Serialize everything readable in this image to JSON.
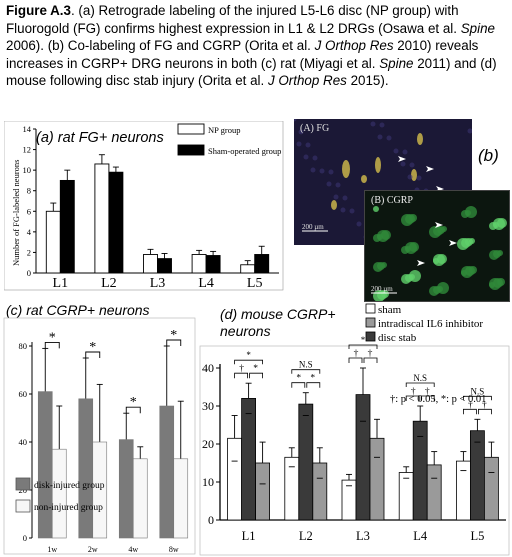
{
  "caption": {
    "figure_label": "Figure A.3",
    "text_parts": [
      {
        "t": ". (a) Retrograde labeling of the injured L5-L6 disc (NP group) with Fluorogold (FG) confirms highest expression in L1 & L2 DRGs (Osawa et al. ",
        "i": false
      },
      {
        "t": "Spine",
        "i": true
      },
      {
        "t": " 2006). (b) Co-labeling of FG and CGRP (Orita et al. ",
        "i": false
      },
      {
        "t": "J Orthop Res",
        "i": true
      },
      {
        "t": " 2010) reveals increases in CGRP+ DRG neurons in both (c) rat (Miyagi et al. ",
        "i": false
      },
      {
        "t": "Spine",
        "i": true
      },
      {
        "t": " 2011) and (d) mouse following disc stab injury (Orita et al. ",
        "i": false
      },
      {
        "t": "J Orthop Res",
        "i": true
      },
      {
        "t": " 2015).",
        "i": false
      }
    ]
  },
  "panel_b": {
    "label": "(b)",
    "image1_label": "(A) FG",
    "image2_label": "(B) CGRP",
    "scale_text": "200 µm"
  },
  "chart_data": [
    {
      "type": "bar",
      "title": "(a) rat FG+ neurons",
      "ylabel": "Number of FG-labeled neurons",
      "ylim": [
        0,
        14
      ],
      "yticks": [
        0,
        2,
        4,
        6,
        8,
        10,
        12,
        14
      ],
      "categories": [
        "L1",
        "L2",
        "L3",
        "L4",
        "L5"
      ],
      "series": [
        {
          "name": "NP group",
          "color": "#ffffff",
          "values": [
            6.0,
            10.6,
            1.8,
            1.8,
            0.8
          ],
          "errors": [
            0.8,
            0.9,
            0.5,
            0.4,
            0.4
          ]
        },
        {
          "name": "Sham-operated group",
          "color": "#000000",
          "values": [
            9.0,
            9.8,
            1.4,
            1.7,
            1.8
          ],
          "errors": [
            1.0,
            0.5,
            0.5,
            0.4,
            0.8
          ]
        }
      ]
    },
    {
      "type": "bar",
      "title": "(c) rat CGRP+ neurons",
      "ylim": [
        0,
        80
      ],
      "yticks": [
        0,
        20,
        40,
        60,
        80
      ],
      "categories": [
        "1w",
        "2w",
        "4w",
        "8w"
      ],
      "series": [
        {
          "name": "disk-injured group",
          "color": "#7a7a7a",
          "values": [
            61,
            58,
            41,
            55
          ],
          "errors": [
            18,
            17,
            11,
            25
          ]
        },
        {
          "name": "non-injured group",
          "color": "#f7f7f7",
          "values": [
            37,
            40,
            33,
            33
          ],
          "errors": [
            18,
            24,
            5,
            24
          ]
        }
      ],
      "significance": [
        "*",
        "*",
        "*",
        "*"
      ]
    },
    {
      "type": "bar",
      "title": "(d) mouse CGRP+ neurons",
      "ylim": [
        0,
        40
      ],
      "yticks": [
        0,
        10,
        20,
        30,
        40
      ],
      "categories": [
        "L1",
        "L2",
        "L3",
        "L4",
        "L5"
      ],
      "series": [
        {
          "name": "sham",
          "color": "#ffffff",
          "values": [
            21.5,
            16.5,
            10.5,
            12.5,
            15.5
          ],
          "errors": [
            6,
            2.5,
            1.5,
            1.5,
            2.5
          ]
        },
        {
          "name": "intradiscal IL6 inhibitor",
          "color": "#9a9a9a",
          "values": [
            15,
            15,
            21.5,
            14.5,
            16.5
          ],
          "errors": [
            5.5,
            4,
            5,
            3.5,
            4
          ]
        },
        {
          "name": "disc stab",
          "color": "#3a3a3a",
          "values": [
            32,
            30.5,
            33,
            26,
            23.5
          ],
          "errors": [
            4,
            3,
            7,
            4,
            3
          ]
        }
      ],
      "group_labels": [
        "*",
        "N.S",
        "*",
        "N.S",
        "N.S"
      ],
      "pair_labels": [
        [
          "†",
          "*",
          "*"
        ],
        [
          "*",
          "*"
        ],
        [
          "†",
          "†"
        ],
        [
          "†",
          "†"
        ],
        [
          "†",
          "†"
        ]
      ],
      "annotation": "†: p < 0.05, *: p < 0.01"
    }
  ]
}
